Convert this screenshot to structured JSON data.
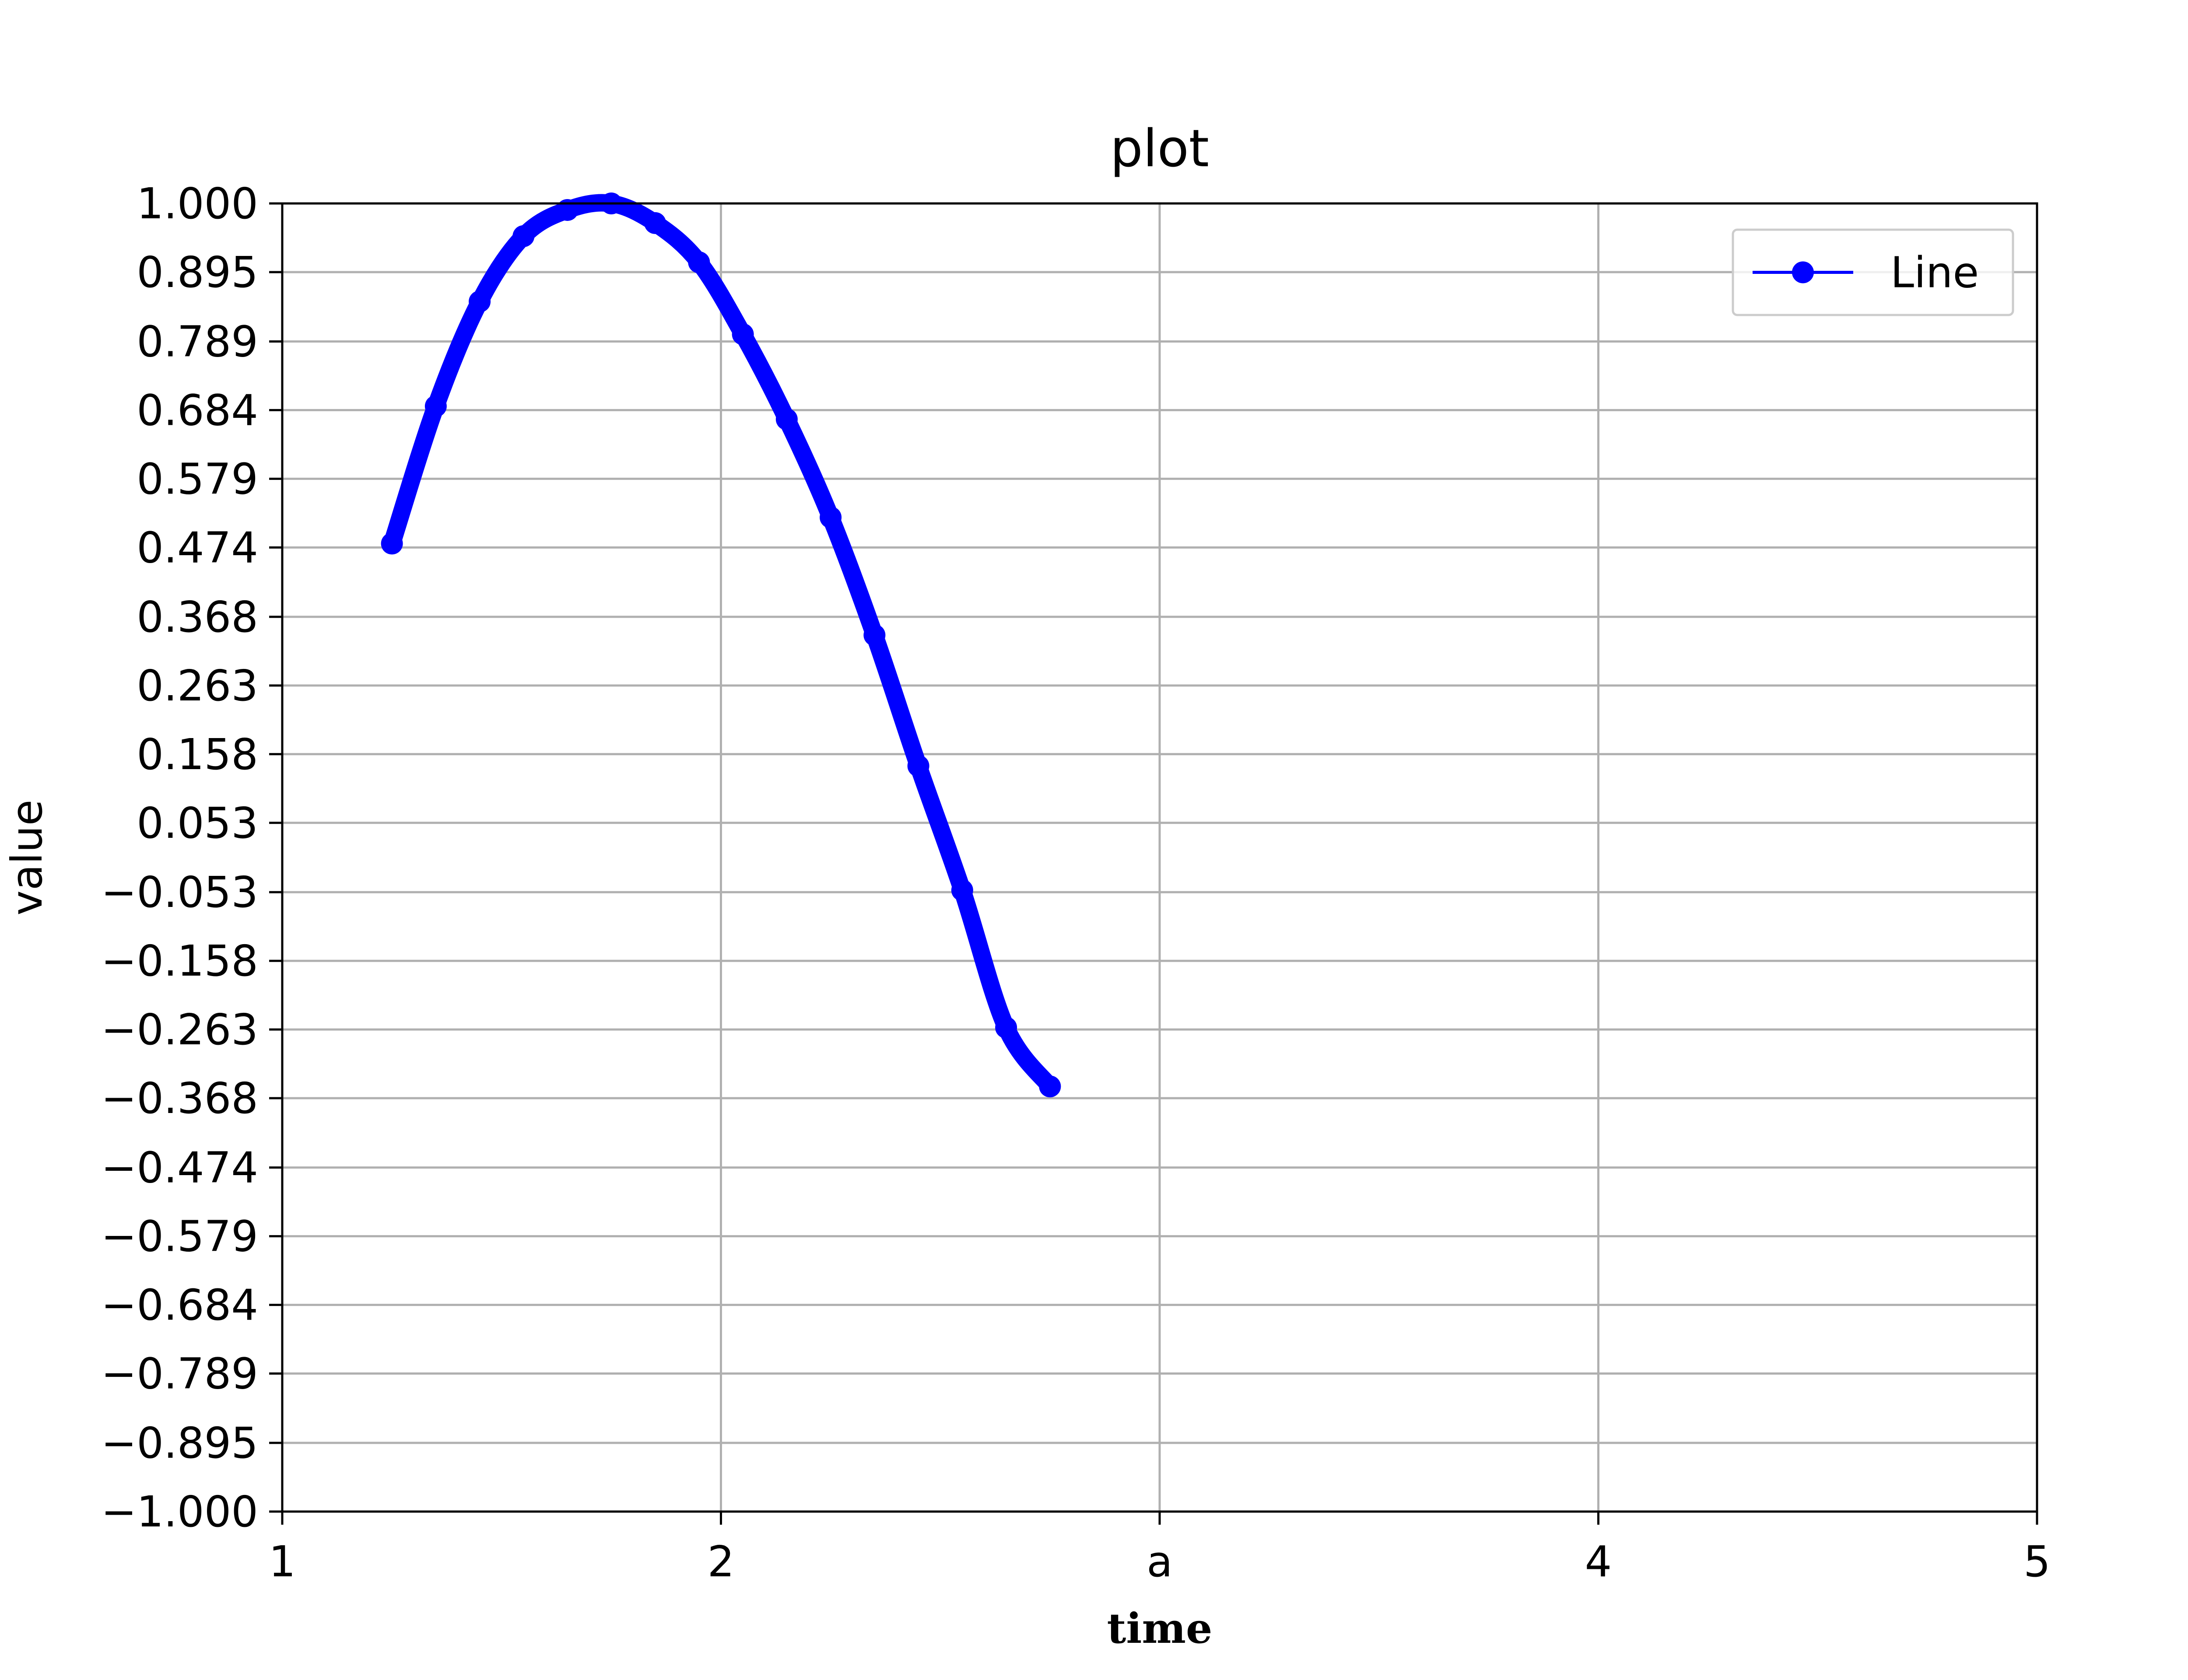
{
  "chart_data": {
    "type": "line",
    "title": "plot",
    "xlabel": "time",
    "ylabel": "value",
    "xlim": [
      1,
      5
    ],
    "ylim": [
      -1.0,
      1.0
    ],
    "x_ticks": [
      1,
      2,
      3,
      4,
      5
    ],
    "x_tick_labels": [
      "1",
      "2",
      "a",
      "4",
      "5"
    ],
    "y_ticks": [
      1.0,
      0.895,
      0.789,
      0.684,
      0.579,
      0.474,
      0.368,
      0.263,
      0.158,
      0.053,
      -0.053,
      -0.158,
      -0.263,
      -0.368,
      -0.474,
      -0.579,
      -0.684,
      -0.789,
      -0.895,
      -1.0
    ],
    "y_tick_labels": [
      "1.000",
      "0.895",
      "0.789",
      "0.684",
      "0.579",
      "0.474",
      "0.368",
      "0.263",
      "0.158",
      "0.053",
      "−0.053",
      "−0.158",
      "−0.263",
      "−0.368",
      "−0.474",
      "−0.579",
      "−0.684",
      "−0.789",
      "−0.895",
      "−1.000"
    ],
    "grid": true,
    "legend_position": "upper-right",
    "series": [
      {
        "name": "Line",
        "color": "#0000ff",
        "marker": "circle",
        "x": [
          1.25,
          1.35,
          1.45,
          1.55,
          1.65,
          1.75,
          1.85,
          1.95,
          2.05,
          2.15,
          2.25,
          2.35,
          2.45,
          2.55,
          2.65,
          2.75
        ],
        "y": [
          0.48,
          0.69,
          0.85,
          0.95,
          0.99,
          1.0,
          0.97,
          0.91,
          0.8,
          0.67,
          0.52,
          0.34,
          0.14,
          -0.05,
          -0.26,
          -0.35
        ]
      }
    ]
  }
}
